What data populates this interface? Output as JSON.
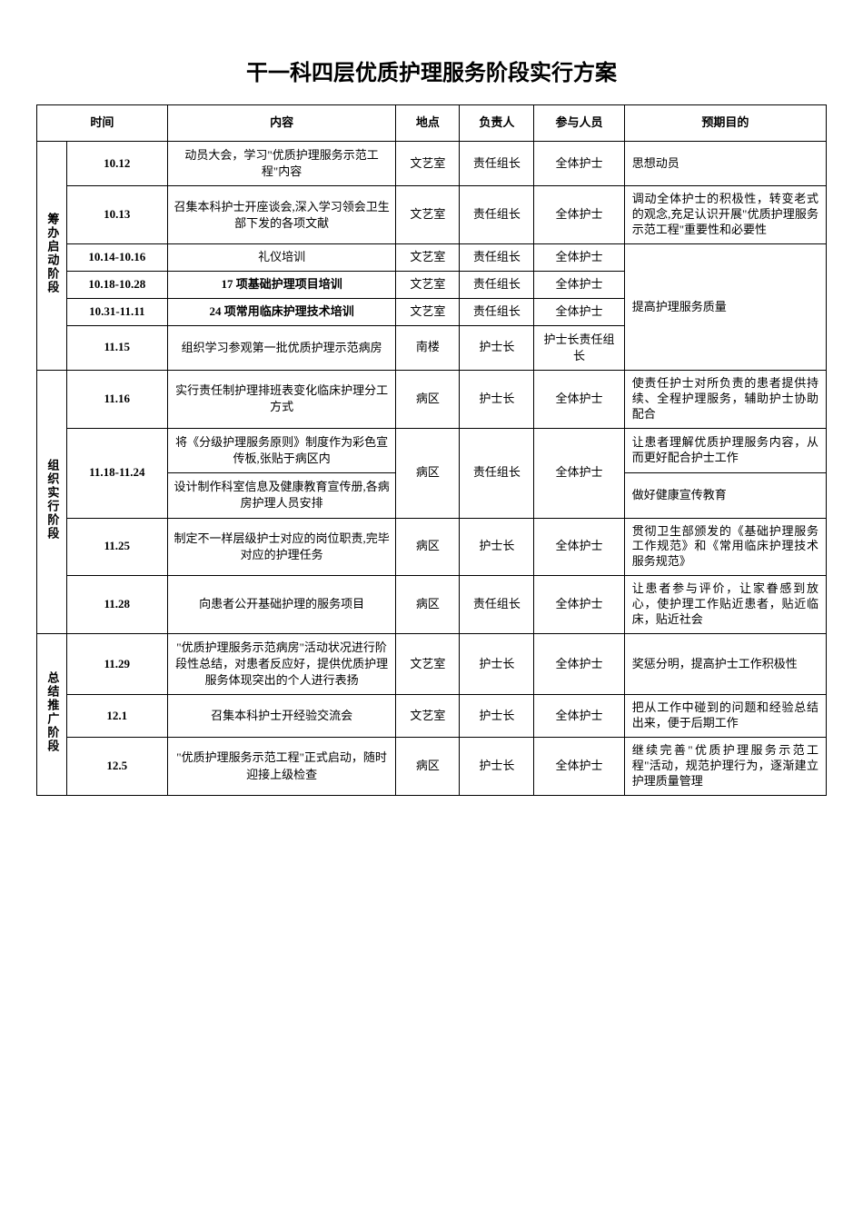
{
  "title": "干一科四层优质护理服务阶段实行方案",
  "headers": {
    "time": "时间",
    "content": "内容",
    "place": "地点",
    "person": "负责人",
    "participant": "参与人员",
    "goal": "预期目的"
  },
  "phases": {
    "phase1": {
      "name": "筹办启动阶段",
      "rows": [
        {
          "time": "10.12",
          "content": "动员大会，学习\"优质护理服务示范工程\"内容",
          "place": "文艺室",
          "person": "责任组长",
          "participant": "全体护士",
          "goal": "思想动员"
        },
        {
          "time": "10.13",
          "content": "召集本科护士开座谈会,深入学习领会卫生部下发的各项文献",
          "place": "文艺室",
          "person": "责任组长",
          "participant": "全体护士",
          "goal": "调动全体护士的积极性，转变老式的观念,充足认识开展\"优质护理服务示范工程\"重要性和必要性"
        },
        {
          "time": "10.14-10.16",
          "content": "礼仪培训",
          "place": "文艺室",
          "person": "责任组长",
          "participant": "全体护士",
          "goal": ""
        },
        {
          "time": "10.18-10.28",
          "content": "17 项基础护理项目培训",
          "place": "文艺室",
          "person": "责任组长",
          "participant": "全体护士",
          "goal": ""
        },
        {
          "time": "10.31-11.11",
          "content": "24 项常用临床护理技术培训",
          "place": "文艺室",
          "person": "责任组长",
          "participant": "全体护士",
          "goal": "提高护理服务质量"
        },
        {
          "time": "11.15",
          "content": "组织学习参观第一批优质护理示范病房",
          "place": "南楼",
          "person": "护士长",
          "participant": "护士长责任组长",
          "goal": ""
        }
      ]
    },
    "phase2": {
      "name": "组织实行阶段",
      "rows": [
        {
          "time": "11.16",
          "content": "实行责任制护理排班表变化临床护理分工方式",
          "place": "病区",
          "person": "护士长",
          "participant": "全体护士",
          "goal": "使责任护士对所负责的患者提供持续、全程护理服务，辅助护士协助配合"
        },
        {
          "time": "11.18-11.24",
          "content1": "将《分级护理服务原则》制度作为彩色宣传板,张贴于病区内",
          "content2": "设计制作科室信息及健康教育宣传册,各病房护理人员安排",
          "place": "病区",
          "person": "责任组长",
          "participant": "全体护士",
          "goal1": "让患者理解优质护理服务内容，从而更好配合护士工作",
          "goal2": "做好健康宣传教育"
        },
        {
          "time": "11.25",
          "content": "制定不一样层级护士对应的岗位职责,完毕对应的护理任务",
          "place": "病区",
          "person": "护士长",
          "participant": "全体护士",
          "goal": "贯彻卫生部颁发的《基础护理服务工作规范》和《常用临床护理技术服务规范》"
        },
        {
          "time": "11.28",
          "content": "向患者公开基础护理的服务项目",
          "place": "病区",
          "person": "责任组长",
          "participant": "全体护士",
          "goal": "让患者参与评价，让家眷感到放心，使护理工作贴近患者，贴近临床，贴近社会"
        }
      ]
    },
    "phase3": {
      "name": "总结推广阶段",
      "rows": [
        {
          "time": "11.29",
          "content": "\"优质护理服务示范病房\"活动状况进行阶段性总结，对患者反应好，提供优质护理服务体现突出的个人进行表扬",
          "place": "文艺室",
          "person": "护士长",
          "participant": "全体护士",
          "goal": "奖惩分明，提高护士工作积极性"
        },
        {
          "time": "12.1",
          "content": "召集本科护士开经验交流会",
          "place": "文艺室",
          "person": "护士长",
          "participant": "全体护士",
          "goal": "把从工作中碰到的问题和经验总结出来，便于后期工作"
        },
        {
          "time": "12.5",
          "content": "\"优质护理服务示范工程\"正式启动，随时迎接上级检查",
          "place": "病区",
          "person": "护士长",
          "participant": "全体护士",
          "goal": "继续完善\"优质护理服务示范工程\"活动，规范护理行为，逐渐建立护理质量管理"
        }
      ]
    }
  }
}
